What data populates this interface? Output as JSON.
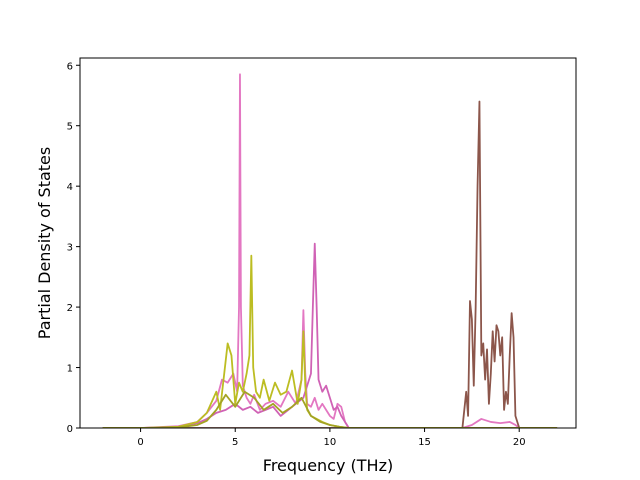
{
  "chart_data": {
    "type": "line",
    "title": "",
    "xlabel": "Frequency (THz)",
    "ylabel": "Partial Density of States",
    "xlim": [
      -3.2,
      23.0
    ],
    "ylim": [
      0,
      6.12
    ],
    "xticks": [
      0,
      5,
      10,
      15,
      20
    ],
    "yticks": [
      0,
      1,
      2,
      3,
      4,
      5,
      6
    ],
    "grid": false,
    "legend": "none",
    "series": [
      {
        "color": "#e377c2",
        "x": [
          -2.0,
          0.0,
          2.0,
          3.0,
          3.5,
          4.0,
          4.3,
          4.6,
          4.9,
          5.1,
          5.2,
          5.25,
          5.3,
          5.4,
          5.6,
          5.8,
          6.0,
          6.3,
          6.6,
          7.0,
          7.4,
          7.8,
          8.2,
          8.5,
          8.6,
          8.7,
          8.8,
          9.0,
          9.2,
          9.4,
          9.6,
          9.8,
          10.0,
          10.2,
          10.4,
          10.6,
          10.8,
          11.0,
          17.0,
          17.5,
          18.0,
          18.5,
          19.0,
          19.5,
          19.8,
          20.0,
          22.0
        ],
        "y": [
          0,
          0,
          0.03,
          0.1,
          0.25,
          0.45,
          0.8,
          0.75,
          0.9,
          0.6,
          2.0,
          5.85,
          2.0,
          0.7,
          0.5,
          0.4,
          0.55,
          0.3,
          0.4,
          0.45,
          0.35,
          0.6,
          0.4,
          0.8,
          1.95,
          0.9,
          0.4,
          0.35,
          0.5,
          0.3,
          0.4,
          0.3,
          0.2,
          0.15,
          0.4,
          0.35,
          0.1,
          0,
          0,
          0.05,
          0.15,
          0.1,
          0.08,
          0.1,
          0.05,
          0,
          0
        ]
      },
      {
        "color": "#d062b5",
        "x": [
          -2.0,
          0.0,
          2.0,
          3.0,
          3.5,
          4.0,
          4.5,
          5.0,
          5.4,
          5.8,
          6.2,
          6.6,
          7.0,
          7.4,
          7.8,
          8.2,
          8.6,
          9.0,
          9.1,
          9.2,
          9.3,
          9.4,
          9.6,
          9.8,
          10.0,
          10.2,
          10.4,
          10.6,
          10.8,
          11.0,
          22.0
        ],
        "y": [
          0,
          0,
          0.02,
          0.08,
          0.15,
          0.25,
          0.3,
          0.4,
          0.3,
          0.35,
          0.25,
          0.3,
          0.35,
          0.2,
          0.3,
          0.4,
          0.5,
          0.9,
          2.0,
          3.05,
          2.0,
          0.8,
          0.6,
          0.7,
          0.5,
          0.3,
          0.35,
          0.2,
          0.1,
          0,
          0
        ]
      },
      {
        "color": "#8c564b",
        "x": [
          -2.0,
          17.0,
          17.2,
          17.3,
          17.4,
          17.5,
          17.6,
          17.7,
          17.8,
          17.9,
          18.0,
          18.1,
          18.2,
          18.3,
          18.4,
          18.5,
          18.6,
          18.7,
          18.8,
          18.9,
          19.0,
          19.1,
          19.2,
          19.3,
          19.4,
          19.5,
          19.6,
          19.7,
          19.8,
          20.0,
          22.0
        ],
        "y": [
          0,
          0,
          0.6,
          0.2,
          2.1,
          1.8,
          0.7,
          2.0,
          4.0,
          5.4,
          1.2,
          1.4,
          0.8,
          1.3,
          0.4,
          0.9,
          1.6,
          1.1,
          1.7,
          1.6,
          1.2,
          1.5,
          0.3,
          0.6,
          0.4,
          1.2,
          1.9,
          1.5,
          0.2,
          0,
          0
        ]
      },
      {
        "color": "#bcbd22",
        "x": [
          -2.0,
          0.0,
          2.0,
          3.0,
          3.5,
          4.0,
          4.2,
          4.4,
          4.6,
          4.8,
          5.0,
          5.2,
          5.4,
          5.6,
          5.75,
          5.85,
          5.95,
          6.1,
          6.3,
          6.5,
          6.8,
          7.1,
          7.4,
          7.7,
          8.0,
          8.3,
          8.5,
          8.6,
          8.7,
          8.8,
          9.0,
          9.3,
          9.6,
          10.0,
          10.5,
          11.0,
          22.0
        ],
        "y": [
          0,
          0,
          0.02,
          0.1,
          0.25,
          0.6,
          0.3,
          0.85,
          1.4,
          1.2,
          0.4,
          0.75,
          0.6,
          0.9,
          1.2,
          2.85,
          1.0,
          0.6,
          0.5,
          0.8,
          0.45,
          0.75,
          0.55,
          0.6,
          0.95,
          0.4,
          0.8,
          1.6,
          0.7,
          0.3,
          0.2,
          0.15,
          0.1,
          0.05,
          0.02,
          0,
          0
        ]
      },
      {
        "color": "#a3a323",
        "x": [
          -2.0,
          0.0,
          2.0,
          3.0,
          3.5,
          4.0,
          4.5,
          5.0,
          5.5,
          6.0,
          6.5,
          7.0,
          7.5,
          8.0,
          8.5,
          9.0,
          9.5,
          10.0,
          10.5,
          11.0,
          22.0
        ],
        "y": [
          0,
          0,
          0.01,
          0.05,
          0.12,
          0.3,
          0.55,
          0.35,
          0.6,
          0.5,
          0.3,
          0.4,
          0.25,
          0.35,
          0.5,
          0.2,
          0.1,
          0.05,
          0.02,
          0,
          0
        ]
      }
    ]
  }
}
